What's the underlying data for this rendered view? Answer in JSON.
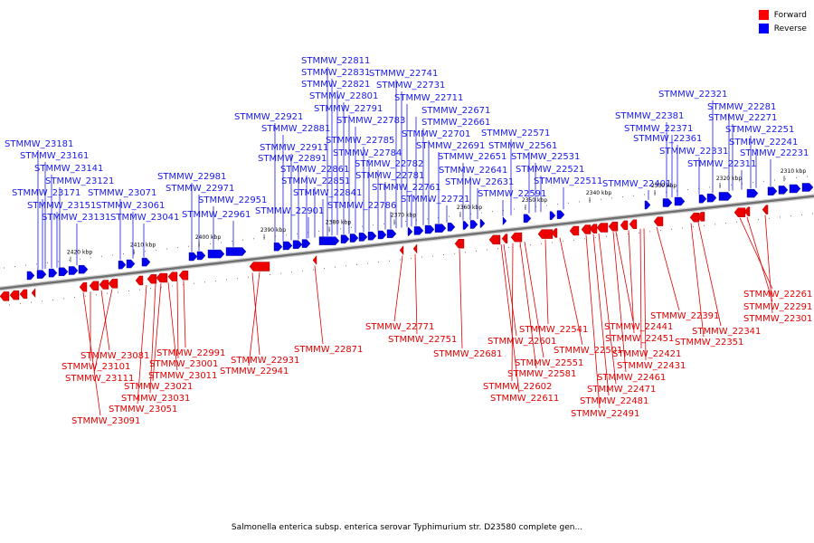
{
  "caption": "Salmonella enterica subsp. enterica serovar Typhimurium str. D23580 complete gen...",
  "legend": [
    {
      "label": "Forward",
      "color": "#ff0000"
    },
    {
      "label": "Reverse",
      "color": "#0000ff"
    }
  ],
  "ticks": [
    "2420 kbp",
    "2410 kbp",
    "2400 kbp",
    "2390 kbp",
    "2380 kbp",
    "2370 kbp",
    "2360 kbp",
    "2350 kbp",
    "2340 kbp",
    "2330 kbp",
    "2320 kbp",
    "2310 kbp"
  ],
  "reverse_labels": [
    "STMMW_23181",
    "STMMW_23161",
    "STMMW_23141",
    "STMMW_23121",
    "STMMW_23171",
    "STMMW_23151",
    "STMMW_23131",
    "STMMW_23071",
    "STMMW_23061",
    "STMMW_23041",
    "STMMW_22981",
    "STMMW_22971",
    "STMMW_22951",
    "STMMW_22961",
    "STMMW_22921",
    "STMMW_22881",
    "STMMW_22911",
    "STMMW_22891",
    "STMMW_22861",
    "STMMW_22851",
    "STMMW_22841",
    "STMMW_22901",
    "STMMW_22811",
    "STMMW_22831",
    "STMMW_22821",
    "STMMW_22801",
    "STMMW_22791",
    "STMMW_22783",
    "STMMW_22785",
    "STMMW_22784",
    "STMMW_22782",
    "STMMW_22781",
    "STMMW_22786",
    "STMMW_22741",
    "STMMW_22731",
    "STMMW_22711",
    "STMMW_22671",
    "STMMW_22661",
    "STMMW_22701",
    "STMMW_22691",
    "STMMW_22761",
    "STMMW_22651",
    "STMMW_22641",
    "STMMW_22631",
    "STMMW_22721",
    "STMMW_22571",
    "STMMW_22561",
    "STMMW_22531",
    "STMMW_22521",
    "STMMW_22591",
    "STMMW_22511",
    "STMMW_22401",
    "STMMW_22381",
    "STMMW_22371",
    "STMMW_22361",
    "STMMW_22321",
    "STMMW_22281",
    "STMMW_22271",
    "STMMW_22251",
    "STMMW_22241",
    "STMMW_22331",
    "STMMW_22231",
    "STMMW_22311"
  ],
  "forward_labels": [
    "STMMW_22261",
    "STMMW_22291",
    "STMMW_22301",
    "STMMW_22391",
    "STMMW_22341",
    "STMMW_22441",
    "STMMW_22351",
    "STMMW_22451",
    "STMMW_22421",
    "STMMW_22431",
    "STMMW_22461",
    "STMMW_22471",
    "STMMW_22481",
    "STMMW_22491",
    "STMMW_22541",
    "STMMW_22501",
    "STMMW_22601",
    "STMMW_22551",
    "STMMW_22581",
    "STMMW_22602",
    "STMMW_22611",
    "STMMW_22681",
    "STMMW_22771",
    "STMMW_22751",
    "STMMW_22871",
    "STMMW_22931",
    "STMMW_22941",
    "STMMW_22991",
    "STMMW_23001",
    "STMMW_23011",
    "STMMW_23021",
    "STMMW_23031",
    "STMMW_23051",
    "STMMW_23081",
    "STMMW_23101",
    "STMMW_23111",
    "STMMW_23091"
  ]
}
